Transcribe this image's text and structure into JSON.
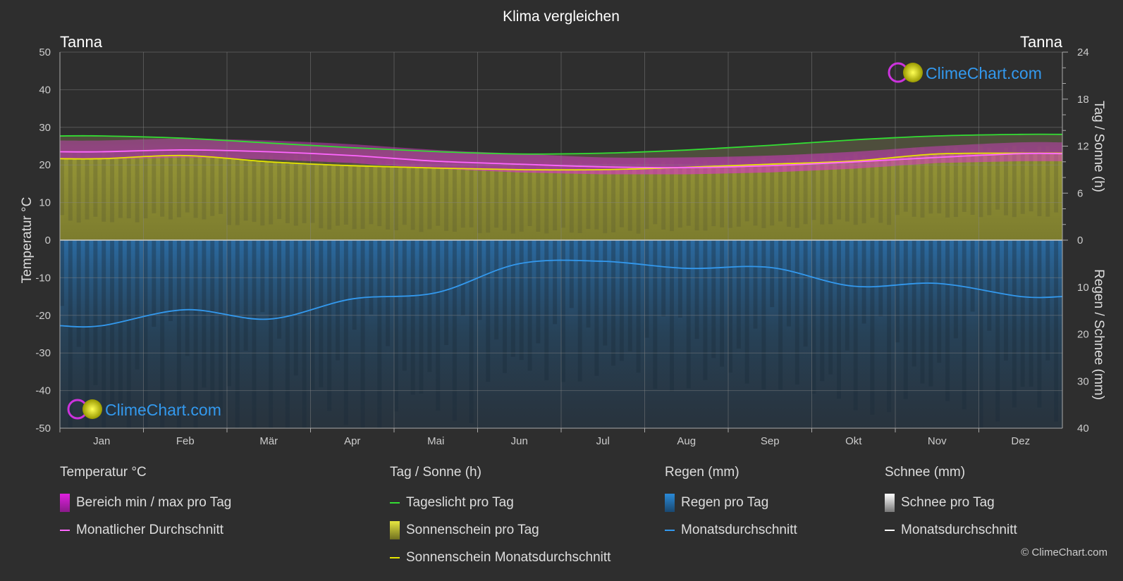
{
  "chart_data": {
    "type": "area",
    "title": "Klima vergleichen",
    "location_left": "Tanna",
    "location_right": "Tanna",
    "y_left_label": "Temperatur °C",
    "y_left_range": [
      -50,
      50
    ],
    "y_left_ticks": [
      "50",
      "40",
      "30",
      "20",
      "10",
      "0",
      "-10",
      "-20",
      "-30",
      "-40",
      "-50"
    ],
    "y_right_top_label": "Tag / Sonne (h)",
    "y_right_top_range": [
      0,
      24
    ],
    "y_right_top_ticks": [
      "24",
      "18",
      "12",
      "6",
      "0"
    ],
    "y_right_bottom_label": "Regen / Schnee (mm)",
    "y_right_bottom_range": [
      0,
      40
    ],
    "y_right_bottom_ticks": [
      "10",
      "20",
      "30",
      "40"
    ],
    "months": [
      "Jan",
      "Feb",
      "Mär",
      "Apr",
      "Mai",
      "Jun",
      "Jul",
      "Aug",
      "Sep",
      "Okt",
      "Nov",
      "Dez"
    ],
    "grid": true,
    "series": [
      {
        "name": "Tageslicht pro Tag",
        "axis": "sun_h",
        "values": [
          13.3,
          13.0,
          12.4,
          11.8,
          11.3,
          11.0,
          11.1,
          11.5,
          12.1,
          12.8,
          13.3,
          13.5
        ]
      },
      {
        "name": "Sonnenschein Monatsdurchschnitt",
        "axis": "sun_h",
        "values": [
          10.4,
          10.8,
          10.0,
          9.5,
          9.2,
          9.0,
          9.0,
          9.3,
          9.7,
          10.1,
          11.0,
          11.1
        ]
      },
      {
        "name": "Monatlicher Durchschnitt",
        "axis": "temp_c",
        "values": [
          23.5,
          24.0,
          23.5,
          22.5,
          21.0,
          20.2,
          19.5,
          19.3,
          19.8,
          20.8,
          22.0,
          23.0
        ]
      },
      {
        "name": "Bereich min / max pro Tag",
        "axis": "temp_c",
        "min": [
          21.5,
          22.0,
          21.5,
          20.5,
          19.0,
          18.0,
          17.5,
          17.5,
          18.0,
          19.0,
          20.5,
          21.0
        ],
        "max": [
          26.5,
          27.0,
          26.5,
          25.5,
          24.0,
          23.0,
          22.0,
          22.0,
          22.5,
          23.5,
          25.0,
          26.0
        ]
      },
      {
        "name": "Monatsdurchschnitt (Regen)",
        "axis": "rain_mm",
        "values": [
          18.2,
          14.8,
          16.8,
          12.5,
          11.2,
          5.0,
          4.5,
          6.0,
          5.8,
          9.8,
          9.2,
          12.0
        ]
      }
    ]
  },
  "logo_text": "ClimeChart.com",
  "legend": [
    {
      "title": "Temperatur °C",
      "items": [
        {
          "label": "Bereich min / max pro Tag",
          "type": "box",
          "color": "#e020e0"
        },
        {
          "label": "Monatlicher Durchschnitt",
          "type": "line",
          "color": "#ff66ff"
        }
      ]
    },
    {
      "title": "Tag / Sonne (h)",
      "items": [
        {
          "label": "Tageslicht pro Tag",
          "type": "line",
          "color": "#33dd33"
        },
        {
          "label": "Sonnenschein pro Tag",
          "type": "box",
          "color": "#c8c832"
        },
        {
          "label": "Sonnenschein Monatsdurchschnitt",
          "type": "line",
          "color": "#e6e600"
        }
      ]
    },
    {
      "title": "Regen (mm)",
      "items": [
        {
          "label": "Regen pro Tag",
          "type": "box",
          "color": "#2a8ad8"
        },
        {
          "label": "Monatsdurchschnitt",
          "type": "line",
          "color": "#3399ee"
        }
      ]
    },
    {
      "title": "Schnee (mm)",
      "items": [
        {
          "label": "Schnee pro Tag",
          "type": "box",
          "color": "#dddddd"
        },
        {
          "label": "Monatsdurchschnitt",
          "type": "line",
          "color": "#ffffff"
        }
      ]
    }
  ],
  "copyright": "© ClimeChart.com"
}
